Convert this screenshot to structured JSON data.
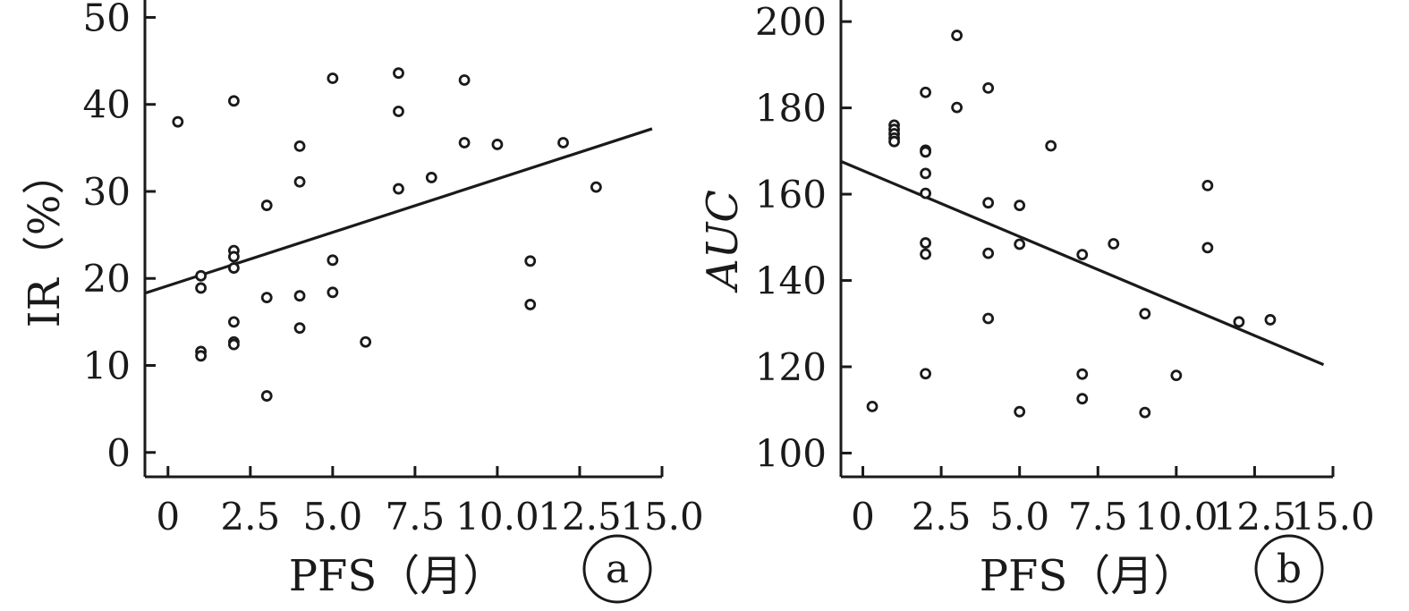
{
  "chart_data": [
    {
      "type": "scatter",
      "panel_label": "a",
      "xlabel": "PFS（月）",
      "ylabel": "IR（%）",
      "ylabel_italic": false,
      "xlim": [
        -0.7,
        15.0
      ],
      "ylim": [
        -2.8,
        52
      ],
      "xticks": [
        0,
        2.5,
        5.0,
        7.5,
        10.0,
        12.5,
        15.0
      ],
      "xtick_labels": [
        "0",
        "2.5",
        "5.0",
        "7.5",
        "10.0",
        "12.5",
        "15.0"
      ],
      "yticks": [
        0,
        10,
        20,
        30,
        40,
        50
      ],
      "ytick_labels": [
        "0",
        "10",
        "20",
        "30",
        "40",
        "50"
      ],
      "grid": false,
      "points": [
        {
          "x": 0.3,
          "y": 38.0
        },
        {
          "x": 1,
          "y": 20.3
        },
        {
          "x": 1,
          "y": 18.9
        },
        {
          "x": 1,
          "y": 11.6
        },
        {
          "x": 1,
          "y": 11.1
        },
        {
          "x": 2,
          "y": 40.4
        },
        {
          "x": 2,
          "y": 23.2
        },
        {
          "x": 2,
          "y": 22.5
        },
        {
          "x": 2,
          "y": 21.2
        },
        {
          "x": 2,
          "y": 15.0
        },
        {
          "x": 2,
          "y": 12.7
        },
        {
          "x": 2,
          "y": 12.4
        },
        {
          "x": 3,
          "y": 28.4
        },
        {
          "x": 3,
          "y": 17.8
        },
        {
          "x": 3,
          "y": 6.5
        },
        {
          "x": 4,
          "y": 35.2
        },
        {
          "x": 4,
          "y": 31.1
        },
        {
          "x": 4,
          "y": 18.0
        },
        {
          "x": 4,
          "y": 14.3
        },
        {
          "x": 5,
          "y": 43.0
        },
        {
          "x": 5,
          "y": 22.1
        },
        {
          "x": 5,
          "y": 18.4
        },
        {
          "x": 6,
          "y": 12.7
        },
        {
          "x": 7,
          "y": 43.6
        },
        {
          "x": 7,
          "y": 39.2
        },
        {
          "x": 7,
          "y": 30.3
        },
        {
          "x": 8,
          "y": 31.6
        },
        {
          "x": 9,
          "y": 42.8
        },
        {
          "x": 9,
          "y": 35.6
        },
        {
          "x": 10,
          "y": 35.4
        },
        {
          "x": 11,
          "y": 22.0
        },
        {
          "x": 11,
          "y": 17.0
        },
        {
          "x": 12,
          "y": 35.6
        },
        {
          "x": 13,
          "y": 30.5
        }
      ],
      "fit_line": {
        "x": [
          -0.7,
          14.7
        ],
        "y": [
          18.3,
          37.2
        ]
      }
    },
    {
      "type": "scatter",
      "panel_label": "b",
      "xlabel": "PFS（月）",
      "ylabel": "AUC",
      "ylabel_italic": true,
      "xlim": [
        -0.7,
        15.0
      ],
      "ylim": [
        94.5,
        205
      ],
      "xticks": [
        0,
        2.5,
        5.0,
        7.5,
        10.0,
        12.5,
        15.0
      ],
      "xtick_labels": [
        "0",
        "2.5",
        "5.0",
        "7.5",
        "10.0",
        "12.5",
        "15.0"
      ],
      "yticks": [
        100,
        120,
        140,
        160,
        180,
        200
      ],
      "ytick_labels": [
        "100",
        "120",
        "140",
        "160",
        "180",
        "200"
      ],
      "grid": false,
      "points": [
        {
          "x": 0.3,
          "y": 110.8
        },
        {
          "x": 1,
          "y": 176.0
        },
        {
          "x": 1,
          "y": 175.0
        },
        {
          "x": 1,
          "y": 174.0
        },
        {
          "x": 1,
          "y": 173.0
        },
        {
          "x": 1,
          "y": 172.2
        },
        {
          "x": 2,
          "y": 183.6
        },
        {
          "x": 2,
          "y": 170.2
        },
        {
          "x": 2,
          "y": 169.8
        },
        {
          "x": 2,
          "y": 164.8
        },
        {
          "x": 2,
          "y": 160.2
        },
        {
          "x": 2,
          "y": 148.7
        },
        {
          "x": 2,
          "y": 146.1
        },
        {
          "x": 2,
          "y": 118.4
        },
        {
          "x": 3,
          "y": 196.8
        },
        {
          "x": 3,
          "y": 180.1
        },
        {
          "x": 4,
          "y": 184.6
        },
        {
          "x": 4,
          "y": 158.0
        },
        {
          "x": 4,
          "y": 146.3
        },
        {
          "x": 4,
          "y": 131.2
        },
        {
          "x": 5,
          "y": 157.4
        },
        {
          "x": 5,
          "y": 148.4
        },
        {
          "x": 5,
          "y": 109.6
        },
        {
          "x": 6,
          "y": 171.2
        },
        {
          "x": 7,
          "y": 146.0
        },
        {
          "x": 7,
          "y": 118.3
        },
        {
          "x": 7,
          "y": 112.6
        },
        {
          "x": 8,
          "y": 148.5
        },
        {
          "x": 9,
          "y": 132.3
        },
        {
          "x": 9,
          "y": 109.4
        },
        {
          "x": 10,
          "y": 118.0
        },
        {
          "x": 11,
          "y": 162.0
        },
        {
          "x": 11,
          "y": 147.6
        },
        {
          "x": 12,
          "y": 130.4
        },
        {
          "x": 13,
          "y": 130.9
        }
      ],
      "fit_line": {
        "x": [
          -0.7,
          14.7
        ],
        "y": [
          167.6,
          120.5
        ]
      }
    }
  ]
}
